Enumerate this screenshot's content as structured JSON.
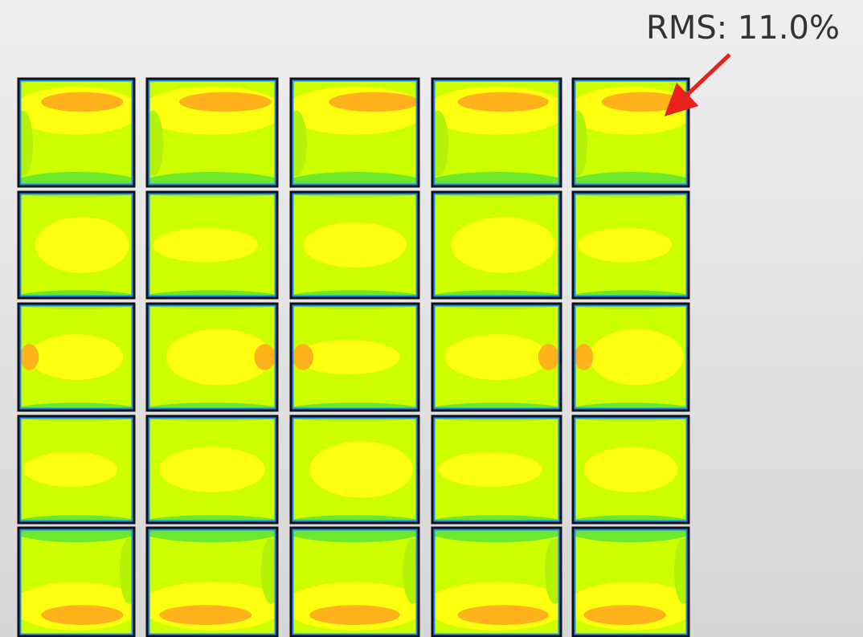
{
  "annotation": "RMS: 11.0%"
}
